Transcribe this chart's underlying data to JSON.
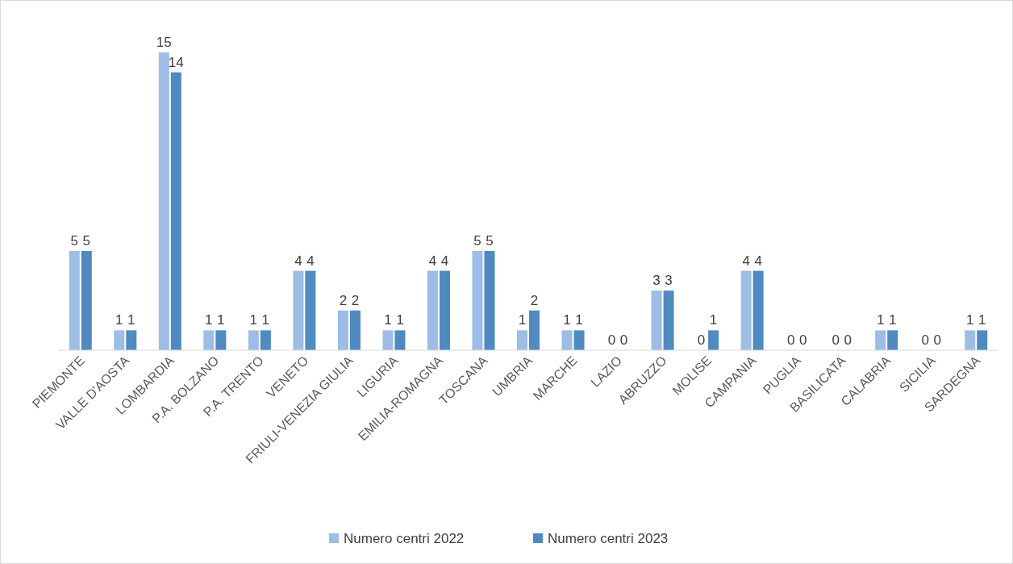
{
  "chart_data": {
    "type": "bar",
    "categories": [
      "PIEMONTE",
      "VALLE D'AOSTA",
      "LOMBARDIA",
      "P.A. BOLZANO",
      "P.A. TRENTO",
      "VENETO",
      "FRIULI-VENEZIA GIULIA",
      "LIGURIA",
      "EMILIA-ROMAGNA",
      "TOSCANA",
      "UMBRIA",
      "MARCHE",
      "LAZIO",
      "ABRUZZO",
      "MOLISE",
      "CAMPANIA",
      "PUGLIA",
      "BASILICATA",
      "CALABRIA",
      "SICILIA",
      "SARDEGNA"
    ],
    "series": [
      {
        "name": "Numero centri 2022",
        "color": "#9dbde6",
        "values": [
          5,
          1,
          15,
          1,
          1,
          4,
          2,
          1,
          4,
          5,
          1,
          1,
          0,
          3,
          0,
          4,
          0,
          0,
          1,
          0,
          1
        ]
      },
      {
        "name": "Numero centri 2023",
        "color": "#4f8ac0",
        "values": [
          5,
          1,
          14,
          1,
          1,
          4,
          2,
          1,
          4,
          5,
          2,
          1,
          0,
          3,
          1,
          4,
          0,
          0,
          1,
          0,
          1
        ]
      }
    ],
    "data_labels": true,
    "legend": "bottom",
    "grid": false
  }
}
